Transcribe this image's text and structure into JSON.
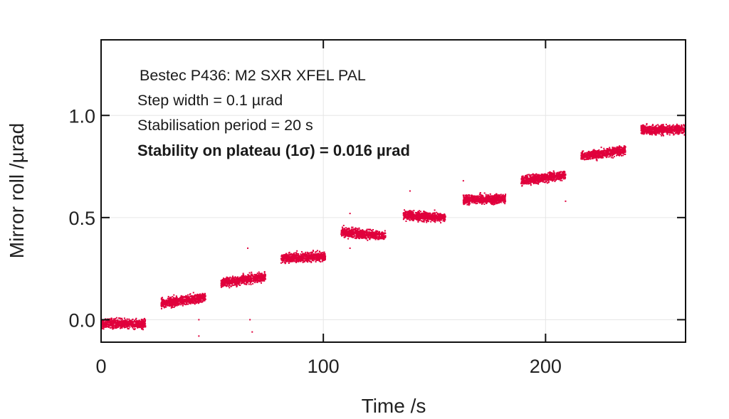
{
  "chart_data": {
    "type": "scatter",
    "title": "",
    "xlabel": "Time /s",
    "ylabel": "Mirror roll /µrad",
    "xlim": [
      0,
      263
    ],
    "ylim": [
      -0.11,
      1.37
    ],
    "xticks": [
      0,
      100,
      200
    ],
    "xtick_labels": [
      "0",
      "100",
      "200"
    ],
    "yticks": [
      0.0,
      0.5,
      1.0
    ],
    "ytick_labels": [
      "0.0",
      "0.5",
      "1.0"
    ],
    "grid": true,
    "marker_color": "#e0003c",
    "annotations": [
      "Bestec P436: M2 SXR XFEL PAL",
      "Step width = 0.1 µrad",
      "Stabilisation period = 20 s",
      "Stability on plateau (1σ) = 0.016 µrad"
    ],
    "series": [
      {
        "name": "Mirror roll",
        "plateaus": [
          {
            "t_start": 0,
            "t_end": 20,
            "y_start": -0.02,
            "y_end": -0.02
          },
          {
            "t_start": 27,
            "t_end": 47,
            "y_start": 0.08,
            "y_end": 0.11
          },
          {
            "t_start": 54,
            "t_end": 74,
            "y_start": 0.18,
            "y_end": 0.21
          },
          {
            "t_start": 81,
            "t_end": 101,
            "y_start": 0.3,
            "y_end": 0.31
          },
          {
            "t_start": 108,
            "t_end": 128,
            "y_start": 0.43,
            "y_end": 0.41
          },
          {
            "t_start": 136,
            "t_end": 155,
            "y_start": 0.51,
            "y_end": 0.5
          },
          {
            "t_start": 163,
            "t_end": 182,
            "y_start": 0.59,
            "y_end": 0.59
          },
          {
            "t_start": 189,
            "t_end": 209,
            "y_start": 0.68,
            "y_end": 0.71
          },
          {
            "t_start": 216,
            "t_end": 236,
            "y_start": 0.8,
            "y_end": 0.83
          },
          {
            "t_start": 243,
            "t_end": 263,
            "y_start": 0.93,
            "y_end": 0.93
          }
        ],
        "outliers": [
          {
            "t": 44,
            "y": -0.08
          },
          {
            "t": 44,
            "y": 0.0
          },
          {
            "t": 66,
            "y": 0.35
          },
          {
            "t": 67,
            "y": 0.0
          },
          {
            "t": 68,
            "y": -0.06
          },
          {
            "t": 112,
            "y": 0.52
          },
          {
            "t": 112,
            "y": 0.35
          },
          {
            "t": 139,
            "y": 0.63
          },
          {
            "t": 163,
            "y": 0.68
          },
          {
            "t": 209,
            "y": 0.58
          }
        ]
      }
    ]
  }
}
